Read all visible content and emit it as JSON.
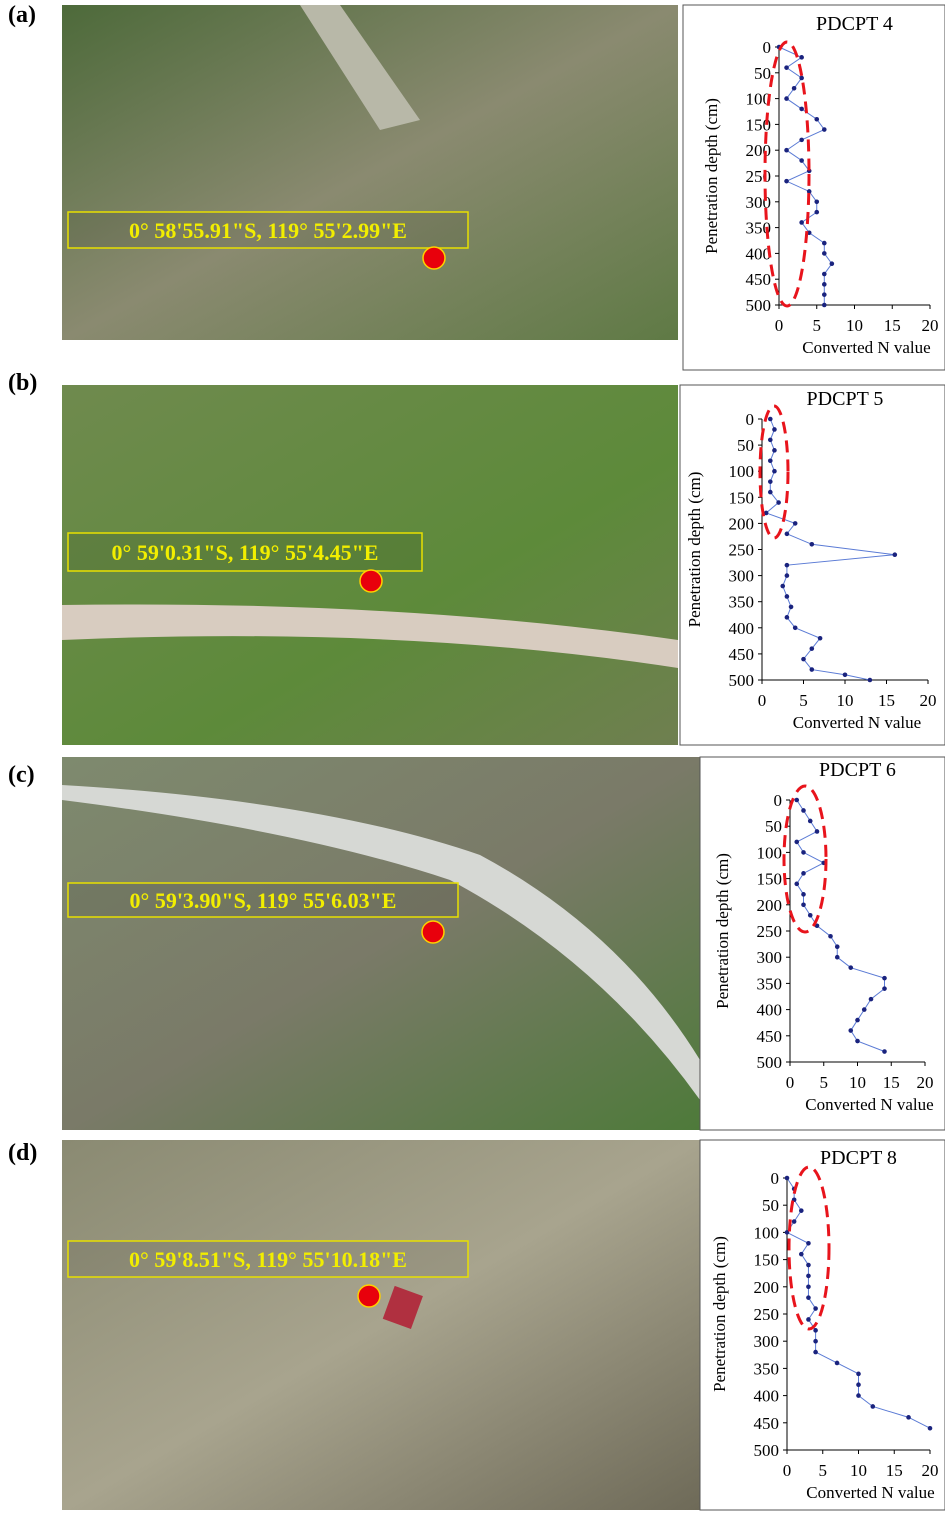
{
  "panels": [
    {
      "label": "(a)",
      "coordinates": "0°  58'55.91\"S, 119°  55'2.99\"E"
    },
    {
      "label": "(b)",
      "coordinates": "0°  59'0.31\"S, 119°  55'4.45\"E"
    },
    {
      "label": "(c)",
      "coordinates": "0°  59'3.90\"S, 119°  55'6.03\"E"
    },
    {
      "label": "(d)",
      "coordinates": "0°  59'8.51\"S, 119°  55'10.18\"E"
    }
  ],
  "chart_data": [
    {
      "type": "line",
      "title": "PDCPT 4",
      "x_label": "Penetration depth (cm)",
      "y_label": "Converted N value",
      "x": [
        0,
        20,
        40,
        60,
        80,
        100,
        120,
        140,
        160,
        180,
        200,
        220,
        240,
        260,
        280,
        300,
        320,
        340,
        360,
        380,
        400,
        420,
        440,
        460,
        480,
        500
      ],
      "series": [
        {
          "name": "PDCPT 4",
          "color": "#1a237e",
          "values": [
            0,
            3,
            1,
            3,
            2,
            1,
            3,
            5,
            6,
            3,
            1,
            3,
            4,
            1,
            4,
            5,
            5,
            3,
            4,
            6,
            6,
            7,
            6,
            6,
            6,
            6
          ]
        }
      ],
      "xlim": [
        0,
        500
      ],
      "xticks": [
        0,
        50,
        100,
        150,
        200,
        250,
        300,
        350,
        400,
        450,
        500
      ],
      "ylim": [
        0,
        20
      ],
      "yticks": [
        0,
        5,
        10,
        15,
        20
      ]
    },
    {
      "type": "line",
      "title": "PDCPT 5",
      "x_label": "Penetration depth (cm)",
      "y_label": "Converted N value",
      "x": [
        0,
        20,
        40,
        60,
        80,
        100,
        120,
        140,
        160,
        180,
        200,
        220,
        240,
        260,
        280,
        300,
        320,
        340,
        360,
        380,
        400,
        420,
        440,
        460,
        480,
        490,
        500
      ],
      "series": [
        {
          "name": "PDCPT 5",
          "color": "#1a237e",
          "values": [
            1,
            1.5,
            1,
            1.5,
            1,
            1.5,
            1,
            1,
            2,
            0.5,
            4,
            3,
            6,
            16,
            3,
            3,
            2.5,
            3,
            3.5,
            3,
            4,
            7,
            6,
            5,
            6,
            10,
            13
          ]
        }
      ],
      "xlim": [
        0,
        500
      ],
      "xticks": [
        0,
        50,
        100,
        150,
        200,
        250,
        300,
        350,
        400,
        450,
        500
      ],
      "ylim": [
        0,
        20
      ],
      "yticks": [
        0,
        5,
        10,
        15,
        20
      ]
    },
    {
      "type": "line",
      "title": "PDCPT 6",
      "x_label": "Penetration depth (cm)",
      "y_label": "Converted N value",
      "x": [
        0,
        20,
        40,
        60,
        80,
        100,
        120,
        140,
        160,
        180,
        200,
        220,
        240,
        260,
        280,
        300,
        320,
        340,
        360,
        380,
        400,
        420,
        440,
        460,
        480
      ],
      "series": [
        {
          "name": "PDCPT 6",
          "color": "#1a237e",
          "values": [
            1,
            2,
            3,
            4,
            1,
            2,
            5,
            2,
            1,
            2,
            2,
            3,
            4,
            6,
            7,
            7,
            9,
            14,
            14,
            12,
            11,
            10,
            9,
            10,
            14
          ]
        }
      ],
      "xlim": [
        0,
        500
      ],
      "xticks": [
        0,
        50,
        100,
        150,
        200,
        250,
        300,
        350,
        400,
        450,
        500
      ],
      "ylim": [
        0,
        20
      ],
      "yticks": [
        0,
        5,
        10,
        15,
        20
      ]
    },
    {
      "type": "line",
      "title": "PDCPT 8",
      "x_label": "Penetration depth (cm)",
      "y_label": "Converted N value",
      "x": [
        0,
        20,
        40,
        60,
        80,
        100,
        120,
        140,
        160,
        180,
        200,
        220,
        240,
        260,
        280,
        300,
        320,
        340,
        360,
        380,
        400,
        420,
        440,
        460
      ],
      "series": [
        {
          "name": "PDCPT 8",
          "color": "#1a237e",
          "values": [
            0,
            1,
            1,
            2,
            1,
            0,
            3,
            2,
            3,
            3,
            3,
            3,
            4,
            3,
            4,
            4,
            4,
            7,
            10,
            10,
            10,
            12,
            17,
            20
          ]
        }
      ],
      "xlim": [
        0,
        500
      ],
      "xticks": [
        0,
        50,
        100,
        150,
        200,
        250,
        300,
        350,
        400,
        450,
        500
      ],
      "ylim": [
        0,
        20
      ],
      "yticks": [
        0,
        5,
        10,
        15,
        20
      ]
    }
  ]
}
